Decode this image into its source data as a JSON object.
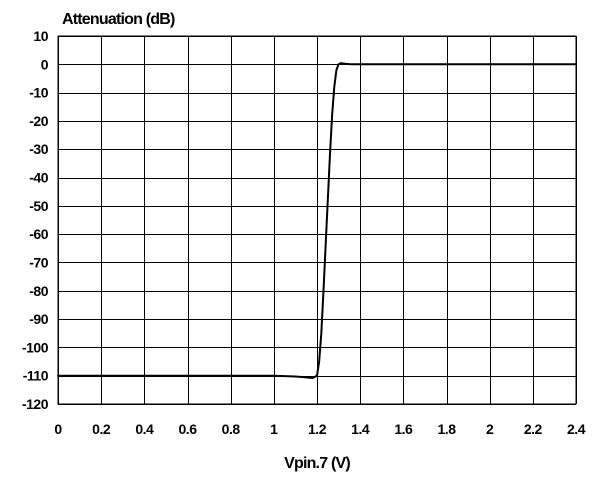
{
  "chart_data": {
    "type": "line",
    "title": "",
    "ylabel": "Attenuation (dB)",
    "xlabel": "Vpin.7 (V)",
    "xlim": [
      0,
      2.6
    ],
    "ylim": [
      -120,
      10
    ],
    "grid": true,
    "x_ticks": [
      0,
      0.2,
      0.4,
      0.6,
      0.8,
      1,
      1.2,
      1.4,
      1.6,
      1.8,
      2,
      2.2,
      2.4
    ],
    "x_tick_labels": [
      "0",
      "0.2",
      "0.4",
      "0.6",
      "0.8",
      "1",
      "1.2",
      "1.4",
      "1.6",
      "1.8",
      "2",
      "2.2",
      "2.4"
    ],
    "y_ticks": [
      10,
      0,
      -10,
      -20,
      -30,
      -40,
      -50,
      -60,
      -70,
      -80,
      -90,
      -100,
      -110,
      -120
    ],
    "y_tick_labels": [
      "10",
      "0",
      "-10",
      "-20",
      "-30",
      "-40",
      "-50",
      "-60",
      "-70",
      "-80",
      "-90",
      "-100",
      "-110",
      "-120"
    ],
    "series": [
      {
        "x": [
          0,
          0.4,
          0.8,
          1.0,
          1.1,
          1.15,
          1.18,
          1.2,
          1.21,
          1.22,
          1.23,
          1.24,
          1.25,
          1.26,
          1.27,
          1.28,
          1.29,
          1.3,
          1.31,
          1.33,
          1.36,
          1.5,
          2.0,
          2.4
        ],
        "y": [
          -110,
          -110,
          -110,
          -110,
          -110.3,
          -110.6,
          -110.8,
          -110,
          -105,
          -95,
          -80,
          -64,
          -48,
          -32,
          -18,
          -8,
          -2,
          0,
          0.4,
          0.2,
          0,
          0,
          0,
          0
        ]
      }
    ]
  }
}
